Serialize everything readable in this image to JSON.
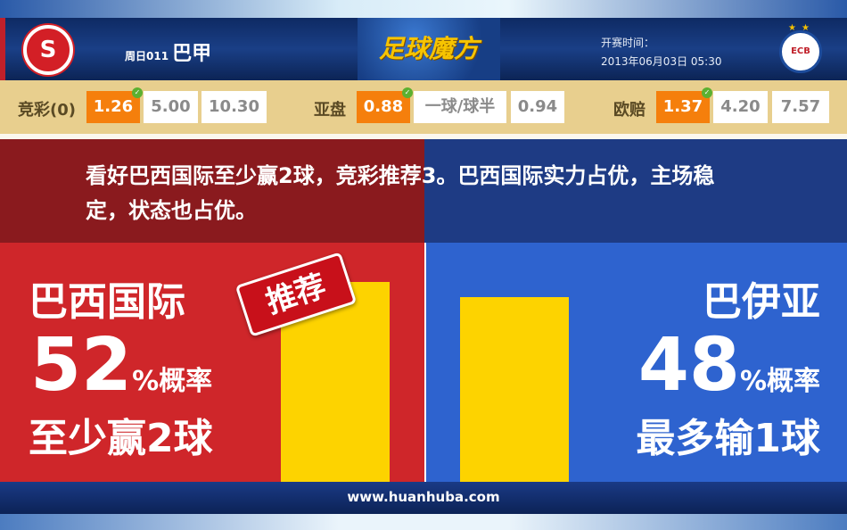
{
  "header": {
    "match_no": "周日011",
    "league": "巴甲",
    "brand": "足球魔方",
    "kickoff_label": "开赛时间：",
    "kickoff_time": "2013年06月03日 05:30"
  },
  "odds": {
    "jingcai": {
      "label": "竞彩(0)",
      "values": [
        "1.26",
        "5.00",
        "10.30"
      ],
      "selected": 0
    },
    "asian": {
      "label": "亚盘",
      "values": [
        "0.88",
        "一球/球半",
        "0.94"
      ],
      "selected": 0
    },
    "euro": {
      "label": "欧赔",
      "values": [
        "1.37",
        "4.20",
        "7.57"
      ],
      "selected": 0
    }
  },
  "summary": "看好巴西国际至少赢2球，竞彩推荐3。巴西国际实力占优，主场稳定，状态也占优。",
  "home": {
    "name": "巴西国际",
    "percent": "52",
    "percent_suffix": "%概率",
    "outcome": "至少赢2球",
    "badge": "推荐",
    "probability": 52
  },
  "away": {
    "name": "巴伊亚",
    "percent": "48",
    "percent_suffix": "%概率",
    "outcome": "最多输1球",
    "probability": 48
  },
  "footer": "www.huanhuba.com",
  "colors": {
    "home": "#cf262a",
    "away": "#2e63cf",
    "bar": "#fdd300",
    "highlight": "#f57f0c"
  }
}
